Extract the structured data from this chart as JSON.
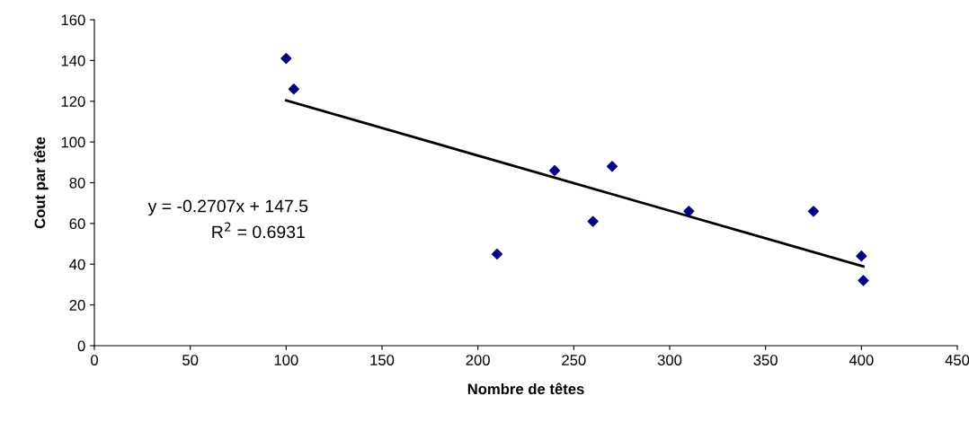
{
  "chart_data": {
    "type": "scatter",
    "xlabel": "Nombre de têtes",
    "ylabel": "Cout par tête",
    "xlim": [
      0,
      450
    ],
    "xticks": [
      0,
      50,
      100,
      150,
      200,
      250,
      300,
      350,
      400,
      450
    ],
    "ylim": [
      0,
      160
    ],
    "yticks": [
      0,
      20,
      40,
      60,
      80,
      100,
      120,
      140,
      160
    ],
    "grid": false,
    "legend": false,
    "marker": "diamond",
    "series": [
      {
        "color": "#000080",
        "x": [
          100,
          104,
          210,
          240,
          260,
          270,
          310,
          375,
          400,
          401
        ],
        "values": [
          141,
          126,
          45,
          86,
          61,
          88,
          66,
          66,
          44,
          32
        ]
      },
      {
        "type": "line",
        "color": "#000000",
        "line_style": "solid",
        "marker": "none",
        "x": [
          100,
          401
        ],
        "values": [
          120.4,
          38.9
        ]
      }
    ],
    "annotations": [
      "y = -0.2707x + 147.5",
      "R$^{2}$ = 0.6931"
    ]
  }
}
